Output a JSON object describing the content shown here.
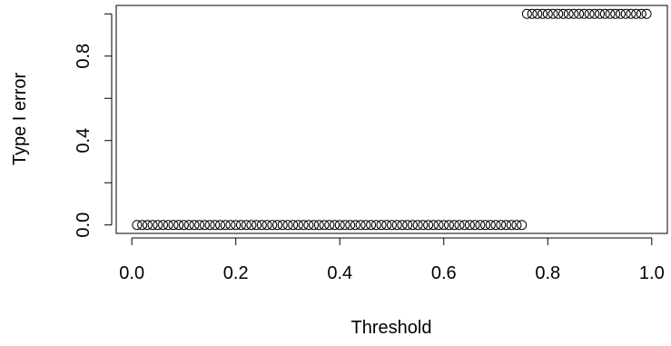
{
  "chart_data": {
    "type": "scatter",
    "title": "",
    "xlabel": "Threshold",
    "ylabel": "Type I error",
    "xlim": [
      -0.03,
      1.03
    ],
    "ylim": [
      -0.04,
      1.04
    ],
    "xticks": [
      0.0,
      0.2,
      0.4,
      0.6,
      0.8,
      1.0
    ],
    "xtick_labels": [
      "0.0",
      "0.2",
      "0.4",
      "0.6",
      "0.8",
      "1.0"
    ],
    "yticks": [
      0.0,
      0.2,
      0.4,
      0.6,
      0.8,
      1.0
    ],
    "ytick_labels": [
      "0.0",
      "",
      "0.4",
      "",
      "0.8",
      ""
    ],
    "marker": "open-circle",
    "grid": false,
    "legend": "none",
    "series": [
      {
        "x": [
          0.01,
          0.02,
          0.03,
          0.04,
          0.05,
          0.06,
          0.07,
          0.08,
          0.09,
          0.1,
          0.11,
          0.12,
          0.13,
          0.14,
          0.15,
          0.16,
          0.17,
          0.18,
          0.19,
          0.2,
          0.21,
          0.22,
          0.23,
          0.24,
          0.25,
          0.26,
          0.27,
          0.28,
          0.29,
          0.3,
          0.31,
          0.32,
          0.33,
          0.34,
          0.35,
          0.36,
          0.37,
          0.38,
          0.39,
          0.4,
          0.41,
          0.42,
          0.43,
          0.44,
          0.45,
          0.46,
          0.47,
          0.48,
          0.49,
          0.5,
          0.51,
          0.52,
          0.53,
          0.54,
          0.55,
          0.56,
          0.57,
          0.58,
          0.59,
          0.6,
          0.61,
          0.62,
          0.63,
          0.64,
          0.65,
          0.66,
          0.67,
          0.68,
          0.69,
          0.7,
          0.71,
          0.72,
          0.73,
          0.74,
          0.75,
          0.76,
          0.77,
          0.78,
          0.79,
          0.8,
          0.81,
          0.82,
          0.83,
          0.84,
          0.85,
          0.86,
          0.87,
          0.88,
          0.89,
          0.9,
          0.91,
          0.92,
          0.93,
          0.94,
          0.95,
          0.96,
          0.97,
          0.98,
          0.99
        ],
        "y": [
          0,
          0,
          0,
          0,
          0,
          0,
          0,
          0,
          0,
          0,
          0,
          0,
          0,
          0,
          0,
          0,
          0,
          0,
          0,
          0,
          0,
          0,
          0,
          0,
          0,
          0,
          0,
          0,
          0,
          0,
          0,
          0,
          0,
          0,
          0,
          0,
          0,
          0,
          0,
          0,
          0,
          0,
          0,
          0,
          0,
          0,
          0,
          0,
          0,
          0,
          0,
          0,
          0,
          0,
          0,
          0,
          0,
          0,
          0,
          0,
          0,
          0,
          0,
          0,
          0,
          0,
          0,
          0,
          0,
          0,
          0,
          0,
          0,
          0,
          0,
          1,
          1,
          1,
          1,
          1,
          1,
          1,
          1,
          1,
          1,
          1,
          1,
          1,
          1,
          1,
          1,
          1,
          1,
          1,
          1,
          1,
          1,
          1,
          1
        ]
      }
    ]
  }
}
